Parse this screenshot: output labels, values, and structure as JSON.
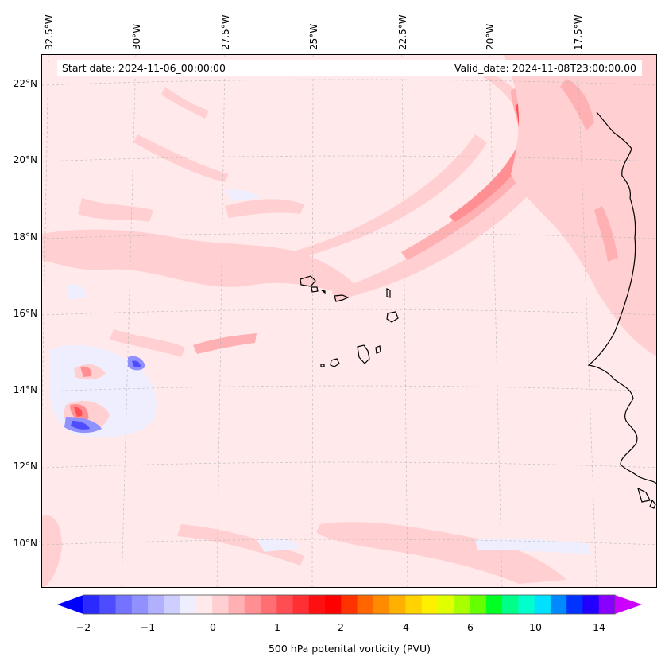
{
  "map": {
    "start_date": "Start date: 2024-11-06_00:00:00",
    "valid_date": "Valid_date: 2024-11-08T23:00:00.00",
    "longitude_labels": [
      "32.5°W",
      "30°W",
      "27.5°W",
      "25°W",
      "22.5°W",
      "20°W",
      "17.5°W"
    ],
    "latitude_labels": [
      "22°N",
      "20°N",
      "18°N",
      "16°N",
      "14°N",
      "12°N",
      "10°N"
    ],
    "region": "Eastern tropical Atlantic — Cape Verde Islands and West African coast"
  },
  "colorbar": {
    "label": "500 hPa potenital vorticity (PVU)",
    "tick_labels": [
      "−2",
      "−1",
      "0",
      "1",
      "2",
      "4",
      "6",
      "10",
      "14"
    ],
    "colors": [
      "#0000ff",
      "#2a2aff",
      "#4d4dff",
      "#7373ff",
      "#9090ff",
      "#b0b0ff",
      "#cfcfff",
      "#eeeeff",
      "#ffe9ea",
      "#ffcfd1",
      "#ffb0b3",
      "#ff8f93",
      "#ff6e73",
      "#ff4e53",
      "#ff2f33",
      "#ff1010",
      "#ff0000",
      "#ff3300",
      "#ff6600",
      "#ff8c00",
      "#ffb000",
      "#ffd200",
      "#fff000",
      "#e0ff00",
      "#a8ff00",
      "#66ff00",
      "#00ff22",
      "#00ff88",
      "#00ffcc",
      "#00e0ff",
      "#0088ff",
      "#0033ff",
      "#2200ff",
      "#8800ff",
      "#cc00ff"
    ]
  }
}
